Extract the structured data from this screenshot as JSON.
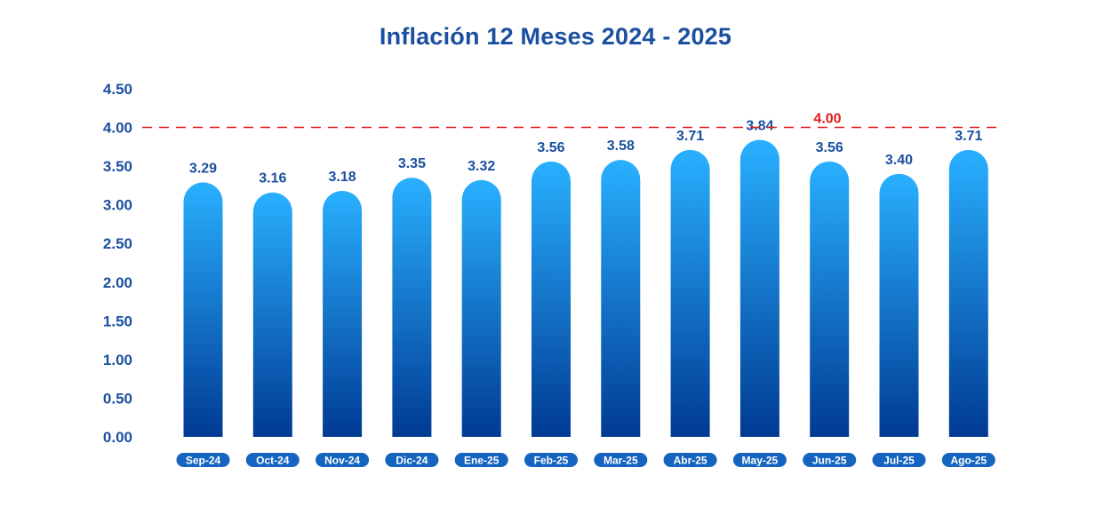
{
  "chart_data": {
    "type": "bar",
    "title": "Inflación 12 Meses 2024 - 2025",
    "xlabel": "",
    "ylabel": "",
    "categories": [
      "Sep-24",
      "Oct-24",
      "Nov-24",
      "Dic-24",
      "Ene-25",
      "Feb-25",
      "Mar-25",
      "Abr-25",
      "May-25",
      "Jun-25",
      "Jul-25",
      "Ago-25"
    ],
    "values": [
      3.29,
      3.16,
      3.18,
      3.35,
      3.32,
      3.56,
      3.58,
      3.71,
      3.84,
      3.56,
      3.4,
      3.71
    ],
    "value_labels": [
      "3.29",
      "3.16",
      "3.18",
      "3.35",
      "3.32",
      "3.56",
      "3.58",
      "3.71",
      "3.84",
      "3.56",
      "3.40",
      "3.71"
    ],
    "yticks": [
      "0.00",
      "0.50",
      "1.00",
      "1.50",
      "2.00",
      "2.50",
      "3.00",
      "3.50",
      "4.00",
      "4.50"
    ],
    "ylim": [
      0,
      4.5
    ],
    "reference_line": {
      "value": 4.0,
      "label": "4.00",
      "color": "#e41b1b",
      "style": "dashed"
    },
    "colors": {
      "bar_top": "#29b0ff",
      "bar_bottom": "#003a93",
      "text": "#1b4fa0",
      "label_pill": "#1565c0",
      "baseline": "#1b4fa0"
    },
    "grid": false,
    "legend": "none"
  }
}
